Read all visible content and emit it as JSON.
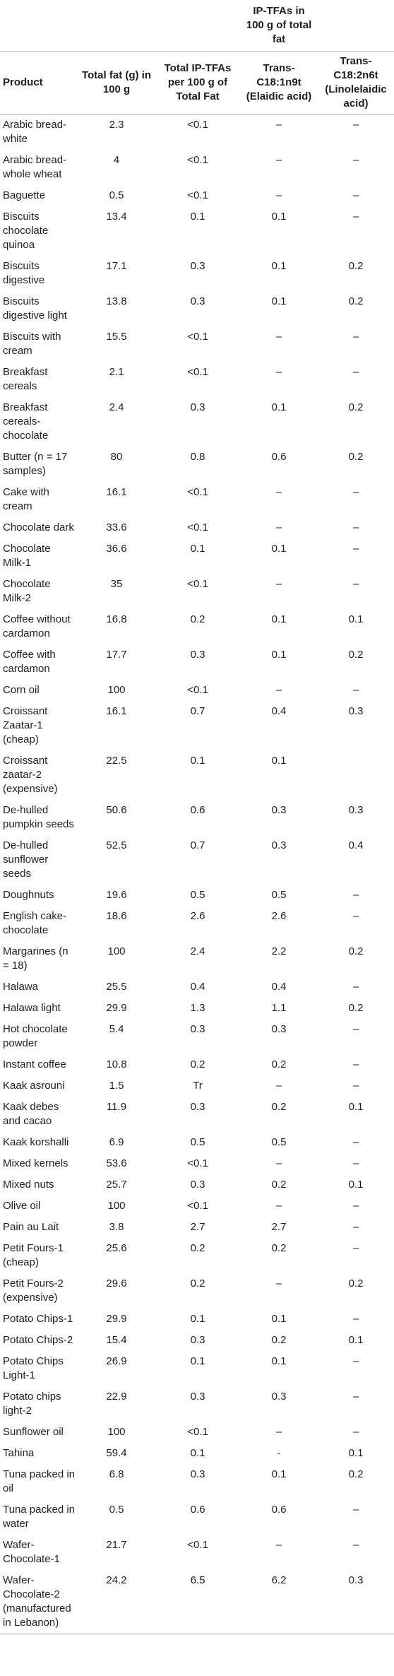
{
  "group_header": "IP-TFAs in 100 g of total fat",
  "headers": [
    "Product",
    "Total fat (g) in 100 g",
    "Total IP-TFAs per 100 g of Total Fat",
    "Trans-C18:1n9t (Elaidic acid)",
    "Trans-C18:2n6t (Linolelaidic acid)"
  ],
  "rows": [
    [
      "Arabic bread-white",
      "2.3",
      "<0.1",
      "–",
      "–"
    ],
    [
      "Arabic bread-whole wheat",
      "4",
      "<0.1",
      "–",
      "–"
    ],
    [
      "Baguette",
      "0.5",
      "<0.1",
      "–",
      "–"
    ],
    [
      "Biscuits chocolate quinoa",
      "13.4",
      "0.1",
      "0.1",
      "–"
    ],
    [
      "Biscuits digestive",
      "17.1",
      "0.3",
      "0.1",
      "0.2"
    ],
    [
      "Biscuits digestive light",
      "13.8",
      "0.3",
      "0.1",
      "0.2"
    ],
    [
      "Biscuits with cream",
      "15.5",
      "<0.1",
      "–",
      "–"
    ],
    [
      "Breakfast cereals",
      "2.1",
      "<0.1",
      "–",
      "–"
    ],
    [
      "Breakfast cereals-chocolate",
      "2.4",
      "0.3",
      "0.1",
      "0.2"
    ],
    [
      "Butter (n = 17 samples)",
      "80",
      "0.8",
      "0.6",
      "0.2"
    ],
    [
      "Cake with cream",
      "16.1",
      "<0.1",
      "–",
      "–"
    ],
    [
      "Chocolate dark",
      "33.6",
      "<0.1",
      "–",
      "–"
    ],
    [
      "Chocolate Milk-1",
      "36.6",
      "0.1",
      "0.1",
      "–"
    ],
    [
      "Chocolate Milk-2",
      "35",
      "<0.1",
      "–",
      "–"
    ],
    [
      "Coffee without cardamon",
      "16.8",
      "0.2",
      "0.1",
      "0.1"
    ],
    [
      "Coffee with cardamon",
      "17.7",
      "0.3",
      "0.1",
      "0.2"
    ],
    [
      "Corn oil",
      "100",
      "<0.1",
      "–",
      "–"
    ],
    [
      "Croissant Zaatar-1 (cheap)",
      "16.1",
      "0.7",
      "0.4",
      "0.3"
    ],
    [
      "Croissant zaatar-2 (expensive)",
      "22.5",
      "0.1",
      "0.1",
      ""
    ],
    [
      "De-hulled pumpkin seeds",
      "50.6",
      "0.6",
      "0.3",
      "0.3"
    ],
    [
      "De-hulled sunflower seeds",
      "52.5",
      "0.7",
      "0.3",
      "0.4"
    ],
    [
      "Doughnuts",
      "19.6",
      "0.5",
      "0.5",
      "–"
    ],
    [
      "English cake-chocolate",
      "18.6",
      "2.6",
      "2.6",
      "–"
    ],
    [
      "Margarines (n = 18)",
      "100",
      "2.4",
      "2.2",
      "0.2"
    ],
    [
      "Halawa",
      "25.5",
      "0.4",
      "0.4",
      "–"
    ],
    [
      "Halawa light",
      "29.9",
      "1.3",
      "1.1",
      "0.2"
    ],
    [
      "Hot chocolate powder",
      "5.4",
      "0.3",
      "0.3",
      "–"
    ],
    [
      "Instant coffee",
      "10.8",
      "0.2",
      "0.2",
      "–"
    ],
    [
      "Kaak asrouni",
      "1.5",
      "Tr",
      "–",
      "–"
    ],
    [
      "Kaak debes and cacao",
      "11.9",
      "0.3",
      "0.2",
      "0.1"
    ],
    [
      "Kaak korshalli",
      "6.9",
      "0.5",
      "0.5",
      "–"
    ],
    [
      "Mixed kernels",
      "53.6",
      "<0.1",
      "–",
      "–"
    ],
    [
      "Mixed nuts",
      "25.7",
      "0.3",
      "0.2",
      "0.1"
    ],
    [
      "Olive oil",
      "100",
      "<0.1",
      "–",
      "–"
    ],
    [
      "Pain au Lait",
      "3.8",
      "2.7",
      "2.7",
      "–"
    ],
    [
      "Petit Fours-1 (cheap)",
      "25.6",
      "0.2",
      "0.2",
      "–"
    ],
    [
      "Petit Fours-2 (expensive)",
      "29.6",
      "0.2",
      "–",
      "0.2"
    ],
    [
      "Potato Chips-1",
      "29.9",
      "0.1",
      "0.1",
      "–"
    ],
    [
      "Potato Chips-2",
      "15.4",
      "0.3",
      "0.2",
      "0.1"
    ],
    [
      "Potato Chips Light-1",
      "26.9",
      "0.1",
      "0.1",
      "–"
    ],
    [
      "Potato chips light-2",
      "22.9",
      "0.3",
      "0.3",
      "–"
    ],
    [
      "Sunflower oil",
      "100",
      "<0.1",
      "–",
      "–"
    ],
    [
      "Tahina",
      "59.4",
      "0.1",
      "-",
      "0.1"
    ],
    [
      "Tuna packed in oil",
      "6.8",
      "0.3",
      "0.1",
      "0.2"
    ],
    [
      "Tuna packed in water",
      "0.5",
      "0.6",
      "0.6",
      "–"
    ],
    [
      "Wafer-Chocolate-1",
      "21.7",
      "<0.1",
      "–",
      "–"
    ],
    [
      "Wafer-Chocolate-2 (manufactured in Lebanon)",
      "24.2",
      "6.5",
      "6.2",
      "0.3"
    ]
  ]
}
